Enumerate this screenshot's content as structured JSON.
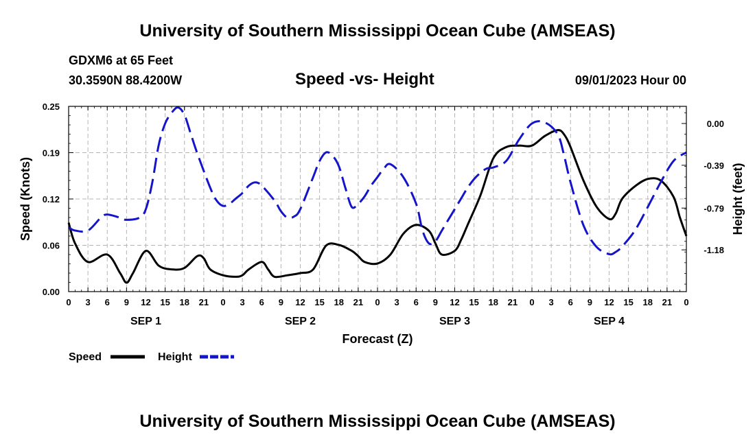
{
  "header": {
    "title": "University of Southern Mississippi Ocean Cube (AMSEAS)",
    "station": "GDXM6 at 65 Feet",
    "coords": "30.3590N  88.4200W",
    "plot_title": "Speed -vs- Height",
    "datetime": "09/01/2023 Hour 00"
  },
  "footer": {
    "title": "University of Southern Mississippi Ocean Cube (AMSEAS)"
  },
  "colors": {
    "speed": "#000000",
    "height": "#1414c8",
    "grid": "#b4b4b4"
  },
  "chart_data": {
    "type": "line",
    "title": "Speed -vs- Height",
    "xlabel": "Forecast (Z)",
    "ylabel_left": "Speed (Knots)",
    "ylabel_right": "Height (feet)",
    "x_range": [
      0,
      96
    ],
    "x_tick_labels": [
      "0",
      "3",
      "6",
      "9",
      "12",
      "15",
      "18",
      "21",
      "0",
      "3",
      "6",
      "9",
      "12",
      "15",
      "18",
      "21",
      "0",
      "3",
      "6",
      "9",
      "12",
      "15",
      "18",
      "21",
      "0",
      "3",
      "6",
      "9",
      "12",
      "15",
      "18",
      "21",
      "0"
    ],
    "day_labels": [
      {
        "label": "SEP 1",
        "hour": 12
      },
      {
        "label": "SEP 2",
        "hour": 36
      },
      {
        "label": "SEP 3",
        "hour": 60
      },
      {
        "label": "SEP 4",
        "hour": 84
      }
    ],
    "y_left": {
      "range": [
        0,
        0.25
      ],
      "ticks": [
        "0.00",
        "0.06",
        "0.12",
        "0.19",
        "0.25"
      ]
    },
    "y_right": {
      "range": [
        -1.57,
        0.16
      ],
      "ticks": [
        {
          "label": "0.00",
          "value": 0.0
        },
        {
          "label": "-0.39",
          "value": -0.39
        },
        {
          "label": "-0.79",
          "value": -0.79
        },
        {
          "label": "-1.18",
          "value": -1.18
        }
      ]
    },
    "legend": [
      {
        "name": "Speed",
        "style": "solid"
      },
      {
        "name": "Height",
        "style": "dashed"
      }
    ],
    "series": [
      {
        "name": "Speed",
        "axis": "left",
        "x": [
          0,
          1,
          3,
          6,
          8,
          9,
          10,
          12,
          14,
          16,
          18,
          20,
          21,
          22,
          24,
          26,
          27,
          28,
          30,
          31,
          32,
          34,
          36,
          38,
          40,
          42,
          44,
          45,
          46,
          48,
          50,
          52,
          54,
          56,
          57,
          58,
          60,
          61,
          62,
          64,
          66,
          68,
          70,
          72,
          74,
          76,
          77,
          78,
          80,
          82,
          84,
          85,
          86,
          88,
          90,
          92,
          94,
          95,
          96
        ],
        "y": [
          0.093,
          0.065,
          0.04,
          0.05,
          0.025,
          0.012,
          0.025,
          0.055,
          0.035,
          0.03,
          0.032,
          0.048,
          0.045,
          0.03,
          0.022,
          0.02,
          0.022,
          0.03,
          0.04,
          0.03,
          0.02,
          0.022,
          0.025,
          0.03,
          0.062,
          0.063,
          0.055,
          0.048,
          0.04,
          0.038,
          0.05,
          0.078,
          0.09,
          0.082,
          0.065,
          0.05,
          0.055,
          0.07,
          0.09,
          0.13,
          0.18,
          0.195,
          0.197,
          0.197,
          0.21,
          0.218,
          0.212,
          0.195,
          0.15,
          0.115,
          0.098,
          0.105,
          0.125,
          0.142,
          0.152,
          0.15,
          0.128,
          0.1,
          0.075
        ]
      },
      {
        "name": "Height",
        "axis": "right",
        "x": [
          0,
          1,
          3,
          5,
          6,
          8,
          9,
          11,
          12,
          13,
          14,
          15,
          16,
          17,
          18,
          19,
          20,
          22,
          23,
          24,
          25,
          26,
          27,
          28,
          29,
          30,
          32,
          33,
          34,
          35,
          36,
          38,
          39,
          40,
          41,
          42,
          43,
          44,
          45,
          46,
          47,
          48,
          49,
          50,
          52,
          54,
          55,
          56,
          57,
          58,
          59,
          60,
          61,
          62,
          63,
          64,
          65,
          66,
          68,
          70,
          72,
          74,
          76,
          77,
          78,
          80,
          82,
          84,
          85,
          86,
          88,
          90,
          92,
          94,
          96
        ],
        "y": [
          -0.97,
          -1.0,
          -1.0,
          -0.88,
          -0.85,
          -0.88,
          -0.9,
          -0.88,
          -0.8,
          -0.55,
          -0.2,
          0.0,
          0.1,
          0.15,
          0.08,
          -0.1,
          -0.28,
          -0.6,
          -0.72,
          -0.77,
          -0.75,
          -0.7,
          -0.65,
          -0.58,
          -0.55,
          -0.58,
          -0.72,
          -0.82,
          -0.88,
          -0.87,
          -0.8,
          -0.5,
          -0.35,
          -0.27,
          -0.3,
          -0.4,
          -0.6,
          -0.78,
          -0.75,
          -0.68,
          -0.58,
          -0.5,
          -0.42,
          -0.38,
          -0.5,
          -0.75,
          -1.0,
          -1.12,
          -1.1,
          -1.0,
          -0.9,
          -0.8,
          -0.7,
          -0.6,
          -0.52,
          -0.46,
          -0.42,
          -0.41,
          -0.35,
          -0.15,
          0.0,
          0.01,
          -0.1,
          -0.3,
          -0.55,
          -0.95,
          -1.15,
          -1.22,
          -1.2,
          -1.15,
          -1.0,
          -0.78,
          -0.55,
          -0.35,
          -0.27
        ]
      }
    ]
  }
}
